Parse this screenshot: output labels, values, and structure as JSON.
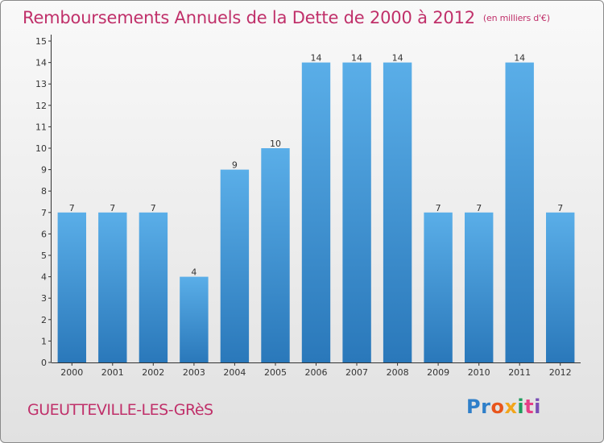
{
  "chart_data": {
    "type": "bar",
    "title": "Remboursements Annuels de la Dette de 2000 à 2012",
    "subtitle": "(en milliers d'€)",
    "categories": [
      "2000",
      "2001",
      "2002",
      "2003",
      "2004",
      "2005",
      "2006",
      "2007",
      "2008",
      "2009",
      "2010",
      "2011",
      "2012"
    ],
    "values": [
      7,
      7,
      7,
      4,
      9,
      10,
      14,
      14,
      14,
      7,
      7,
      14,
      7
    ],
    "data_labels": [
      "7",
      "7",
      "7",
      "4",
      "9",
      "10",
      "14",
      "14",
      "14",
      "7",
      "7",
      "14",
      "7"
    ],
    "ylim": [
      0,
      15
    ],
    "yticks": [
      0,
      1,
      2,
      3,
      4,
      5,
      6,
      7,
      8,
      9,
      10,
      11,
      12,
      13,
      14,
      15
    ],
    "ytick_labels": [
      "0",
      "1",
      "2",
      "3",
      "4",
      "5",
      "6",
      "7",
      "8",
      "9",
      "10",
      "11",
      "12",
      "13",
      "14",
      "15"
    ],
    "xlabel": "",
    "ylabel": "",
    "grid": false,
    "bar_color": "#3f93d8",
    "bar_color_light": "#5aaee8",
    "bar_color_dark": "#2a78ba"
  },
  "footer": {
    "town": "GUEUTTEVILLE-LES-GRèS",
    "logo": {
      "parts": [
        "Pr",
        "o",
        "x",
        "i",
        "t",
        "i"
      ],
      "colors": [
        "#2f7fc9",
        "#e8551c",
        "#f2a51b",
        "#1e9c5c",
        "#e63f86",
        "#7a4fb5"
      ]
    }
  },
  "colors": {
    "title": "#c0306a",
    "axis": "#333333"
  }
}
